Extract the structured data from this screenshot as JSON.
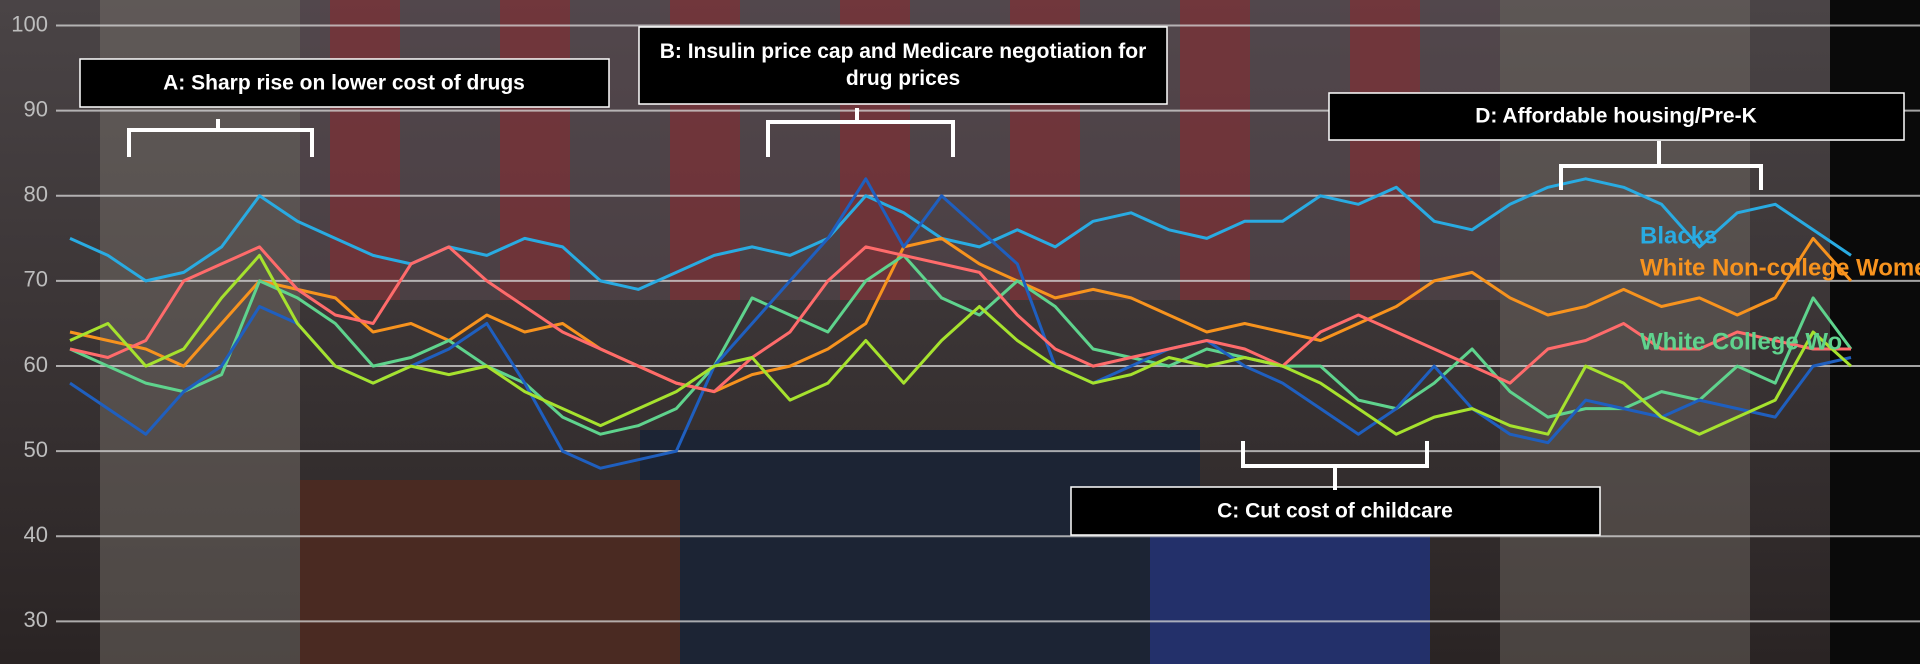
{
  "chart_data": {
    "type": "line",
    "annotations": [
      "A: Sharp rise on lower cost of drugs",
      "B: Insulin price cap and Medicare negotiation for drug prices",
      "C: Cut cost of childcare",
      "D: Affordable housing/Pre-K"
    ],
    "categories": [
      null,
      null,
      null,
      null,
      null,
      null,
      null,
      null,
      null,
      null,
      null,
      null,
      null,
      null,
      null,
      null,
      null,
      null,
      null,
      null,
      null,
      null,
      null,
      null,
      null,
      null,
      null,
      null,
      null,
      null,
      null,
      null,
      null,
      null,
      null,
      null,
      null,
      null,
      null,
      null,
      null,
      null,
      null,
      null,
      null,
      null,
      null,
      null
    ],
    "ylim": [
      25,
      103
    ],
    "yticks": [
      30,
      40,
      50,
      60,
      70,
      80,
      90,
      100
    ],
    "grid": true,
    "series": [
      {
        "name": "Blacks",
        "color": "#29abe2",
        "values": [
          75,
          73,
          70,
          71,
          74,
          80,
          77,
          75,
          73,
          72,
          74,
          73,
          75,
          74,
          70,
          69,
          71,
          73,
          74,
          73,
          75,
          80,
          78,
          75,
          74,
          76,
          74,
          77,
          78,
          76,
          75,
          77,
          77,
          80,
          79,
          81,
          77,
          76,
          79,
          81,
          82,
          81,
          79,
          74,
          78,
          79,
          76,
          73
        ]
      },
      {
        "name": "White Non-college Women",
        "color": "#f7931e",
        "values": [
          64,
          63,
          62,
          60,
          65,
          70,
          69,
          68,
          64,
          65,
          63,
          66,
          64,
          65,
          62,
          60,
          58,
          57,
          59,
          60,
          62,
          65,
          74,
          75,
          72,
          70,
          68,
          69,
          68,
          66,
          64,
          65,
          64,
          63,
          65,
          67,
          70,
          71,
          68,
          66,
          67,
          69,
          67,
          68,
          66,
          68,
          75,
          70
        ]
      },
      {
        "name": "White College Wo",
        "color": "#5fd38d",
        "values": [
          62,
          60,
          58,
          57,
          59,
          70,
          68,
          65,
          60,
          61,
          63,
          60,
          58,
          54,
          52,
          53,
          55,
          60,
          68,
          66,
          64,
          70,
          73,
          68,
          66,
          70,
          67,
          62,
          61,
          60,
          62,
          61,
          60,
          60,
          56,
          55,
          58,
          62,
          57,
          54,
          55,
          55,
          57,
          56,
          60,
          58,
          68,
          62
        ]
      },
      {
        "color": "#1f5fbf",
        "values": [
          58,
          55,
          52,
          57,
          60,
          67,
          65,
          60,
          58,
          60,
          62,
          65,
          58,
          50,
          48,
          49,
          50,
          60,
          65,
          70,
          75,
          82,
          74,
          80,
          76,
          72,
          60,
          58,
          60,
          62,
          63,
          60,
          58,
          55,
          52,
          55,
          60,
          55,
          52,
          51,
          56,
          55,
          54,
          56,
          55,
          54,
          60,
          61
        ]
      },
      {
        "color": "#ff6b6b",
        "values": [
          62,
          61,
          63,
          70,
          72,
          74,
          69,
          66,
          65,
          72,
          74,
          70,
          67,
          64,
          62,
          60,
          58,
          57,
          61,
          64,
          70,
          74,
          73,
          72,
          71,
          66,
          62,
          60,
          61,
          62,
          63,
          62,
          60,
          64,
          66,
          64,
          62,
          60,
          58,
          62,
          63,
          65,
          62,
          62,
          64,
          63,
          62,
          62
        ]
      },
      {
        "color": "#a6e22e",
        "values": [
          63,
          65,
          60,
          62,
          68,
          73,
          65,
          60,
          58,
          60,
          59,
          60,
          57,
          55,
          53,
          55,
          57,
          60,
          61,
          56,
          58,
          63,
          58,
          63,
          67,
          63,
          60,
          58,
          59,
          61,
          60,
          61,
          60,
          58,
          55,
          52,
          54,
          55,
          53,
          52,
          60,
          58,
          54,
          52,
          54,
          56,
          64,
          60
        ]
      }
    ]
  }
}
